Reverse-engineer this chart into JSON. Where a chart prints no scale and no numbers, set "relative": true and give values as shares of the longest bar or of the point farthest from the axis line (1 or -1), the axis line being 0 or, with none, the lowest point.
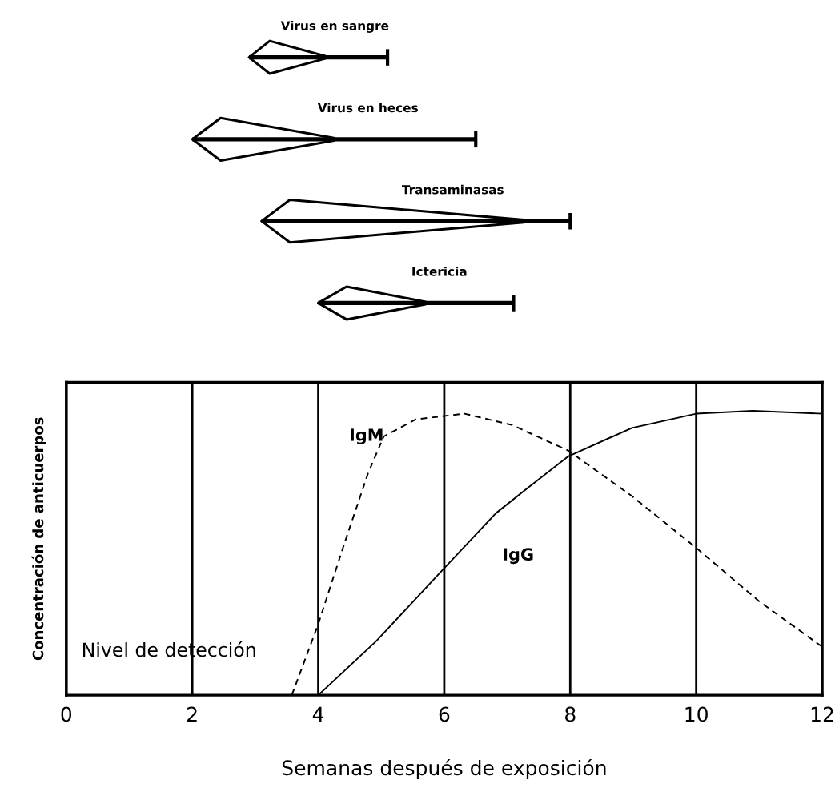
{
  "chart_data": [
    {
      "type": "bar",
      "orientation": "horizontal",
      "categories": [
        "Virus en sangre",
        "Virus en heces",
        "Transaminasas",
        "Ictericia"
      ],
      "base": [
        2.9,
        2.0,
        3.1,
        4.0
      ],
      "values": [
        2.2,
        4.5,
        4.9,
        3.1
      ],
      "color": "#000000",
      "xlim": [
        0,
        12
      ],
      "tick_labels": false
    },
    {
      "type": "line",
      "relative": true,
      "xlabel": "Semanas después de exposición",
      "ylabel": "Concentración de anticuerpos",
      "xlim": [
        0,
        12
      ],
      "xticks": [
        0,
        2,
        4,
        6,
        8,
        10,
        12
      ],
      "grid": "x",
      "marker": "none",
      "annotations": [
        "Nivel de detección"
      ],
      "series": [
        {
          "name": "IgM",
          "color": "#000000",
          "line_style": "dashed",
          "x": [
            3.58,
            4.0,
            4.41,
            4.79,
            5.04,
            5.55,
            6.32,
            7.08,
            7.97,
            8.98,
            9.99,
            11.0,
            12.0
          ],
          "values": [
            0,
            0.25,
            0.53,
            0.78,
            0.91,
            0.97,
            0.99,
            0.95,
            0.86,
            0.7,
            0.52,
            0.33,
            0.17
          ]
        },
        {
          "name": "IgG",
          "color": "#000000",
          "line_style": "solid",
          "x": [
            4.0,
            4.92,
            5.93,
            6.82,
            7.33,
            7.97,
            8.98,
            10.0,
            10.9,
            12.0
          ],
          "values": [
            0,
            0.19,
            0.43,
            0.64,
            0.73,
            0.84,
            0.94,
            0.99,
            1.0,
            0.99
          ]
        }
      ]
    }
  ]
}
